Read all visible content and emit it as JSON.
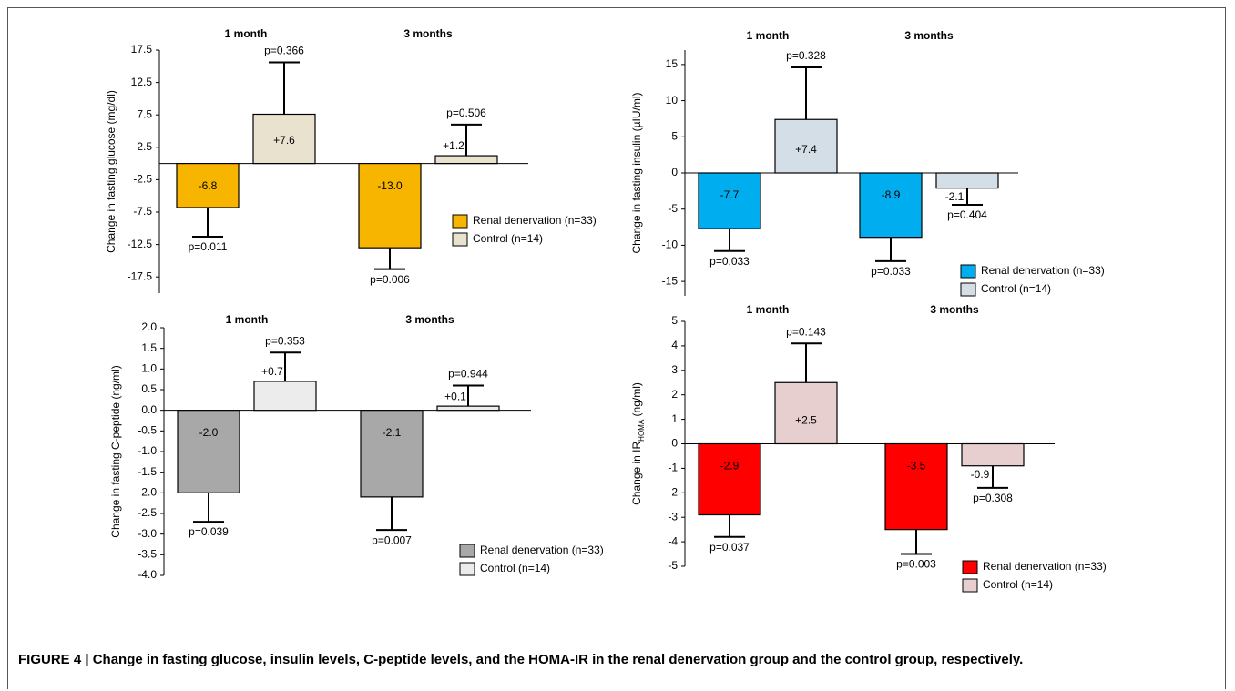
{
  "caption": "FIGURE 4 | Change in fasting glucose, insulin levels, C-peptide levels, and the HOMA-IR in the renal denervation group and the control group, respectively.",
  "chart_data": [
    {
      "type": "bar",
      "ylabel": [
        "Change in fasting glucose (mg/dl)"
      ],
      "categories": [
        "1 month",
        "3 months"
      ],
      "ylim": [
        -20,
        17.5
      ],
      "yticks": [
        17.5,
        12.5,
        7.5,
        2.5,
        -2.5,
        -7.5,
        -12.5,
        -17.5
      ],
      "series": [
        {
          "name": "Renal denervation (n=33)",
          "color": "#f7b500",
          "values": [
            -6.8,
            -13.0
          ],
          "value_labels": [
            "-6.8",
            "-13.0"
          ],
          "errors": [
            4.5,
            3.3
          ],
          "p_labels": [
            "p=0.011",
            "p=0.006"
          ]
        },
        {
          "name": "Control (n=14)",
          "color": "#e9e2cf",
          "values": [
            7.6,
            1.2
          ],
          "value_labels": [
            "+7.6",
            "+1.2"
          ],
          "errors": [
            8.0,
            4.8
          ],
          "p_labels": [
            "p=0.366",
            "p=0.506"
          ]
        }
      ]
    },
    {
      "type": "bar",
      "ylabel": [
        "Change in fasting insulin (µIU/ml)"
      ],
      "categories": [
        "1 month",
        "3 months"
      ],
      "ylim": [
        -17,
        17
      ],
      "yticks": [
        15,
        10,
        5,
        0,
        -5,
        -10,
        -15
      ],
      "series": [
        {
          "name": "Renal denervation (n=33)",
          "color": "#00aeef",
          "values": [
            -7.7,
            -8.9
          ],
          "value_labels": [
            "-7.7",
            "-8.9"
          ],
          "errors": [
            3.1,
            3.3
          ],
          "p_labels": [
            "p=0.033",
            "p=0.033"
          ]
        },
        {
          "name": "Control (n=14)",
          "color": "#d3dee6",
          "values": [
            7.4,
            -2.1
          ],
          "value_labels": [
            "+7.4",
            "-2.1"
          ],
          "errors": [
            7.2,
            2.3
          ],
          "p_labels": [
            "p=0.328",
            "p=0.404"
          ]
        }
      ]
    },
    {
      "type": "bar",
      "ylabel": [
        "Change in fasting C-peptide (ng/ml)"
      ],
      "categories": [
        "1 month",
        "3 months"
      ],
      "ylim": [
        -4,
        2
      ],
      "yticks": [
        {
          "value": 2,
          "label": "2.0"
        },
        1.5,
        {
          "value": 1,
          "label": "1.0"
        },
        0.5,
        {
          "value": 0,
          "label": "0.0"
        },
        -0.5,
        {
          "value": -1,
          "label": "-1.0"
        },
        -1.5,
        {
          "value": -2,
          "label": "-2.0"
        },
        -2.5,
        {
          "value": -3,
          "label": "-3.0"
        },
        -3.5,
        {
          "value": -4,
          "label": "-4.0"
        }
      ],
      "series": [
        {
          "name": "Renal denervation (n=33)",
          "color": "#a8a8a8",
          "values": [
            -2.0,
            -2.1
          ],
          "value_labels": [
            "-2.0",
            "-2.1"
          ],
          "errors": [
            0.7,
            0.8
          ],
          "p_labels": [
            "p=0.039",
            "p=0.007"
          ]
        },
        {
          "name": "Control (n=14)",
          "color": "#ececec",
          "values": [
            0.7,
            0.1
          ],
          "value_labels": [
            "+0.7",
            "+0.1"
          ],
          "errors": [
            0.7,
            0.5
          ],
          "p_labels": [
            "p=0.353",
            "p=0.944"
          ]
        }
      ]
    },
    {
      "type": "bar",
      "ylabel": [
        "Change in IR",
        "HOMA",
        " (ng/ml)"
      ],
      "categories": [
        "1 month",
        "3 months"
      ],
      "ylim": [
        -5,
        5
      ],
      "yticks": [
        5,
        4,
        3,
        2,
        1,
        0,
        -1,
        -2,
        -3,
        -4,
        -5
      ],
      "series": [
        {
          "name": "Renal denervation (n=33)",
          "color": "#ff0000",
          "values": [
            -2.9,
            -3.5
          ],
          "value_labels": [
            "-2.9",
            "-3.5"
          ],
          "errors": [
            0.9,
            1.0
          ],
          "p_labels": [
            "p=0.037",
            "p=0.003"
          ]
        },
        {
          "name": "Control (n=14)",
          "color": "#e8cfcf",
          "values": [
            2.5,
            -0.9
          ],
          "value_labels": [
            "+2.5",
            "-0.9"
          ],
          "errors": [
            1.6,
            0.9
          ],
          "p_labels": [
            "p=0.143",
            "p=0.308"
          ]
        }
      ]
    }
  ]
}
